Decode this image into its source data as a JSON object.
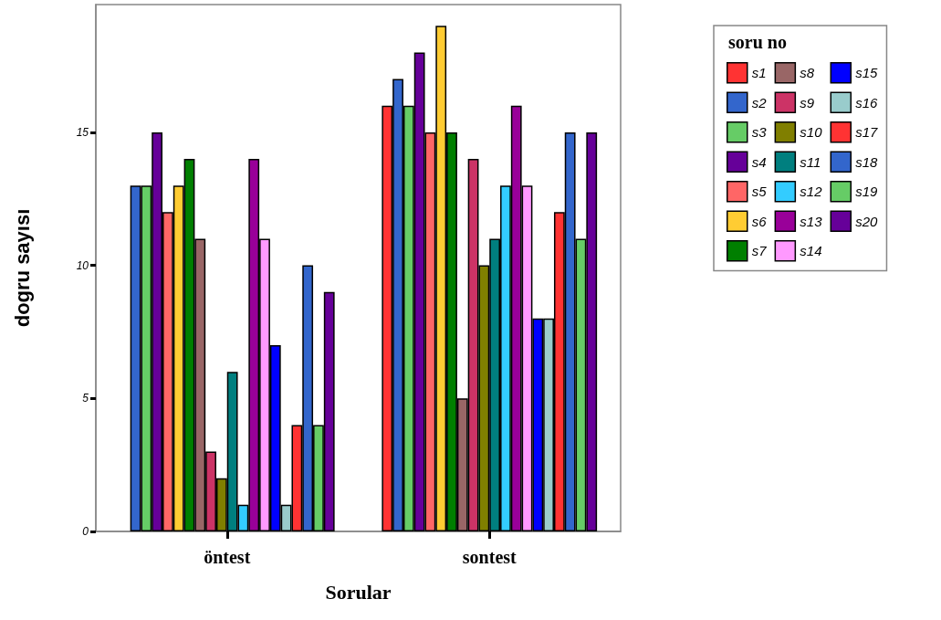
{
  "chart_data": {
    "type": "bar",
    "xlabel": "Sorular",
    "ylabel": "dogru sayısı",
    "legend_title": "soru no",
    "categories": [
      "öntest",
      "sontest"
    ],
    "ylim": [
      0,
      19.8
    ],
    "yticks": [
      0,
      5,
      10,
      15
    ],
    "grid": false,
    "legend": "top right",
    "series": [
      {
        "name": "s1",
        "color": "#ff3333",
        "values": [
          null,
          16
        ]
      },
      {
        "name": "s2",
        "color": "#3366cc",
        "values": [
          13,
          17
        ]
      },
      {
        "name": "s3",
        "color": "#66cc66",
        "values": [
          13,
          16
        ]
      },
      {
        "name": "s4",
        "color": "#660099",
        "values": [
          15,
          18
        ]
      },
      {
        "name": "s5",
        "color": "#ff6666",
        "values": [
          12,
          15
        ]
      },
      {
        "name": "s6",
        "color": "#ffcc33",
        "values": [
          13,
          19
        ]
      },
      {
        "name": "s7",
        "color": "#007f00",
        "values": [
          14,
          15
        ]
      },
      {
        "name": "s8",
        "color": "#996666",
        "values": [
          11,
          5
        ]
      },
      {
        "name": "s9",
        "color": "#cc3366",
        "values": [
          3,
          14
        ]
      },
      {
        "name": "s10",
        "color": "#807f00",
        "values": [
          2,
          10
        ]
      },
      {
        "name": "s11",
        "color": "#007f7f",
        "values": [
          6,
          11
        ]
      },
      {
        "name": "s12",
        "color": "#33ccff",
        "values": [
          1,
          13
        ]
      },
      {
        "name": "s13",
        "color": "#990099",
        "values": [
          14,
          16
        ]
      },
      {
        "name": "s14",
        "color": "#ff99ff",
        "values": [
          11,
          13
        ]
      },
      {
        "name": "s15",
        "color": "#0000ff",
        "values": [
          7,
          8
        ]
      },
      {
        "name": "s16",
        "color": "#99cccc",
        "values": [
          1,
          8
        ]
      },
      {
        "name": "s17",
        "color": "#ff3333",
        "values": [
          4,
          12
        ]
      },
      {
        "name": "s18",
        "color": "#3366cc",
        "values": [
          10,
          15
        ]
      },
      {
        "name": "s19",
        "color": "#66cc66",
        "values": [
          4,
          11
        ]
      },
      {
        "name": "s20",
        "color": "#660099",
        "values": [
          9,
          15
        ]
      }
    ]
  }
}
